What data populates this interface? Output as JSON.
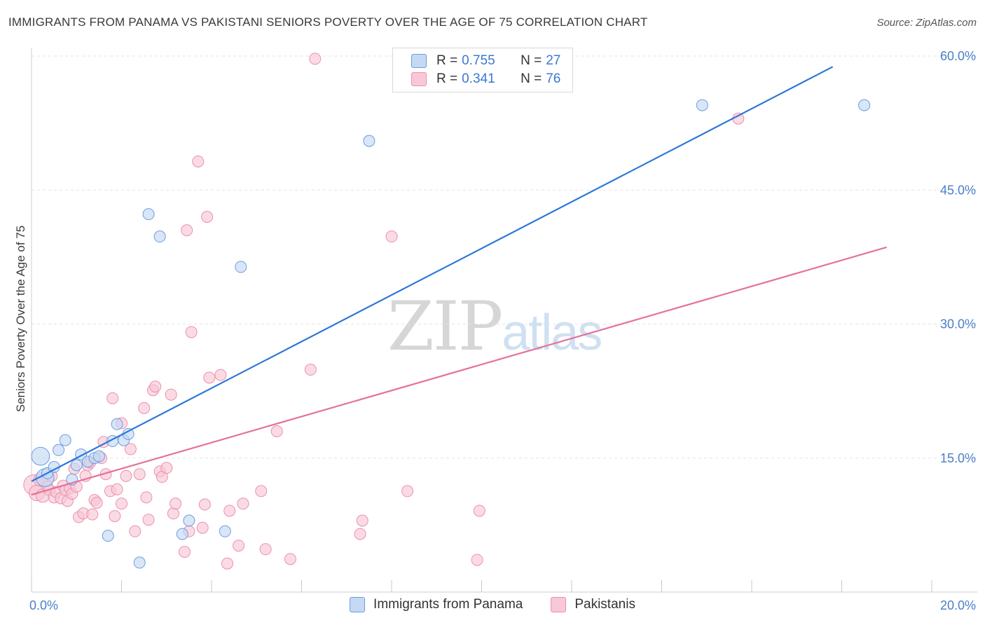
{
  "title": "IMMIGRANTS FROM PANAMA VS PAKISTANI SENIORS POVERTY OVER THE AGE OF 75 CORRELATION CHART",
  "source": "Source: ZipAtlas.com",
  "watermark": {
    "zip": "ZIP",
    "atlas": "atlas"
  },
  "legend_top": [
    {
      "r_label": "R =",
      "r_value": "0.755",
      "n_label": "N =",
      "n_value": "27"
    },
    {
      "r_label": "R =",
      "r_value": "0.341",
      "n_label": "N =",
      "n_value": "76"
    }
  ],
  "legend_bottom": [
    "Immigrants from Panama",
    "Pakistanis"
  ],
  "colors": {
    "blue_fill": "#c5d8f4",
    "blue_stroke": "#6b9de0",
    "blue_line": "#2e78d6",
    "pink_fill": "#f8c8d6",
    "pink_stroke": "#ee8fac",
    "pink_line": "#e4739a",
    "grid": "#e3e3e3",
    "tick": "#4a7fc9"
  },
  "chart_data": {
    "type": "scatter",
    "title": "IMMIGRANTS FROM PANAMA VS PAKISTANI SENIORS POVERTY OVER THE AGE OF 75 CORRELATION CHART",
    "xlabel": "",
    "ylabel": "Seniors Poverty Over the Age of 75",
    "xlim": [
      0,
      20
    ],
    "ylim": [
      0,
      60
    ],
    "x_tick_labels": [
      "0.0%",
      "20.0%"
    ],
    "y_tick_labels": [
      "15.0%",
      "30.0%",
      "45.0%",
      "60.0%"
    ],
    "y_ticks": [
      15,
      30,
      45,
      60
    ],
    "series": [
      {
        "name": "Immigrants from Panama",
        "r": 0.755,
        "n": 27,
        "trend": [
          [
            0.0,
            12.4
          ],
          [
            17.8,
            58.8
          ]
        ],
        "points": [
          [
            0.2,
            15.2,
            1.6
          ],
          [
            0.3,
            12.8,
            1.6
          ],
          [
            0.35,
            13.3,
            1.0
          ],
          [
            0.5,
            14.0,
            1.0
          ],
          [
            0.6,
            15.9,
            1.0
          ],
          [
            0.75,
            17.0,
            1.0
          ],
          [
            0.9,
            12.6,
            1.0
          ],
          [
            1.0,
            14.2,
            1.0
          ],
          [
            1.1,
            15.4,
            1.0
          ],
          [
            1.25,
            14.6,
            1.0
          ],
          [
            1.4,
            15.0,
            1.0
          ],
          [
            1.5,
            15.2,
            1.0
          ],
          [
            1.7,
            6.3,
            1.0
          ],
          [
            1.8,
            16.9,
            1.0
          ],
          [
            1.9,
            18.8,
            1.0
          ],
          [
            2.05,
            17.0,
            1.0
          ],
          [
            2.15,
            17.7,
            1.0
          ],
          [
            2.4,
            3.3,
            1.0
          ],
          [
            2.6,
            42.3,
            1.0
          ],
          [
            2.85,
            39.8,
            1.0
          ],
          [
            3.35,
            6.5,
            1.0
          ],
          [
            3.5,
            8.0,
            1.0
          ],
          [
            4.3,
            6.8,
            1.0
          ],
          [
            4.65,
            36.4,
            1.0
          ],
          [
            7.5,
            50.5,
            1.0
          ],
          [
            14.9,
            54.5,
            1.0
          ],
          [
            18.5,
            54.5,
            1.0
          ]
        ]
      },
      {
        "name": "Pakistanis",
        "r": 0.341,
        "n": 76,
        "trend": [
          [
            0.0,
            10.9
          ],
          [
            19.0,
            38.6
          ]
        ],
        "points": [
          [
            0.05,
            12.0,
            1.8
          ],
          [
            0.12,
            11.1,
            1.4
          ],
          [
            0.2,
            12.6,
            1.2
          ],
          [
            0.25,
            10.8,
            1.2
          ],
          [
            0.35,
            11.8,
            1.0
          ],
          [
            0.4,
            11.4,
            1.0
          ],
          [
            0.45,
            13.0,
            1.0
          ],
          [
            0.5,
            10.6,
            1.0
          ],
          [
            0.55,
            11.2,
            1.0
          ],
          [
            0.65,
            10.5,
            1.0
          ],
          [
            0.7,
            11.9,
            1.0
          ],
          [
            0.75,
            11.4,
            1.0
          ],
          [
            0.8,
            10.2,
            1.0
          ],
          [
            0.85,
            11.6,
            1.0
          ],
          [
            0.9,
            11.0,
            1.0
          ],
          [
            0.95,
            13.8,
            1.0
          ],
          [
            1.0,
            11.8,
            1.0
          ],
          [
            1.05,
            8.4,
            1.0
          ],
          [
            1.15,
            8.8,
            1.0
          ],
          [
            1.2,
            13.0,
            1.0
          ],
          [
            1.25,
            14.2,
            1.0
          ],
          [
            1.3,
            14.5,
            1.0
          ],
          [
            1.35,
            8.7,
            1.0
          ],
          [
            1.4,
            10.3,
            1.0
          ],
          [
            1.45,
            10.0,
            1.0
          ],
          [
            1.55,
            15.0,
            1.0
          ],
          [
            1.6,
            16.8,
            1.0
          ],
          [
            1.65,
            13.2,
            1.0
          ],
          [
            1.75,
            11.3,
            1.0
          ],
          [
            1.8,
            21.7,
            1.0
          ],
          [
            1.85,
            8.5,
            1.0
          ],
          [
            1.9,
            11.5,
            1.0
          ],
          [
            2.0,
            18.9,
            1.0
          ],
          [
            2.0,
            9.9,
            1.0
          ],
          [
            2.1,
            13.0,
            1.0
          ],
          [
            2.2,
            16.0,
            1.0
          ],
          [
            2.3,
            6.8,
            1.0
          ],
          [
            2.4,
            13.2,
            1.0
          ],
          [
            2.5,
            20.6,
            1.0
          ],
          [
            2.55,
            10.6,
            1.0
          ],
          [
            2.6,
            8.1,
            1.0
          ],
          [
            2.7,
            22.6,
            1.0
          ],
          [
            2.75,
            23.0,
            1.0
          ],
          [
            2.85,
            13.5,
            1.0
          ],
          [
            2.9,
            12.9,
            1.0
          ],
          [
            3.0,
            13.9,
            1.0
          ],
          [
            3.1,
            22.1,
            1.0
          ],
          [
            3.15,
            8.8,
            1.0
          ],
          [
            3.2,
            9.9,
            1.0
          ],
          [
            3.4,
            4.5,
            1.0
          ],
          [
            3.45,
            40.5,
            1.0
          ],
          [
            3.5,
            6.8,
            1.0
          ],
          [
            3.55,
            29.1,
            1.0
          ],
          [
            3.7,
            48.2,
            1.0
          ],
          [
            3.8,
            7.2,
            1.0
          ],
          [
            3.85,
            9.8,
            1.0
          ],
          [
            3.9,
            42.0,
            1.0
          ],
          [
            3.95,
            24.0,
            1.0
          ],
          [
            4.2,
            24.3,
            1.0
          ],
          [
            4.35,
            3.2,
            1.0
          ],
          [
            4.4,
            9.1,
            1.0
          ],
          [
            4.6,
            5.2,
            1.0
          ],
          [
            4.7,
            9.9,
            1.0
          ],
          [
            5.1,
            11.3,
            1.0
          ],
          [
            5.2,
            4.8,
            1.0
          ],
          [
            5.45,
            18.0,
            1.0
          ],
          [
            5.75,
            3.7,
            1.0
          ],
          [
            6.2,
            24.9,
            1.0
          ],
          [
            6.3,
            59.7,
            1.0
          ],
          [
            7.3,
            6.5,
            1.0
          ],
          [
            7.35,
            8.0,
            1.0
          ],
          [
            8.0,
            39.8,
            1.0
          ],
          [
            8.35,
            11.3,
            1.0
          ],
          [
            9.9,
            3.6,
            1.0
          ],
          [
            9.95,
            9.1,
            1.0
          ],
          [
            15.7,
            53.0,
            1.0
          ]
        ]
      }
    ]
  }
}
